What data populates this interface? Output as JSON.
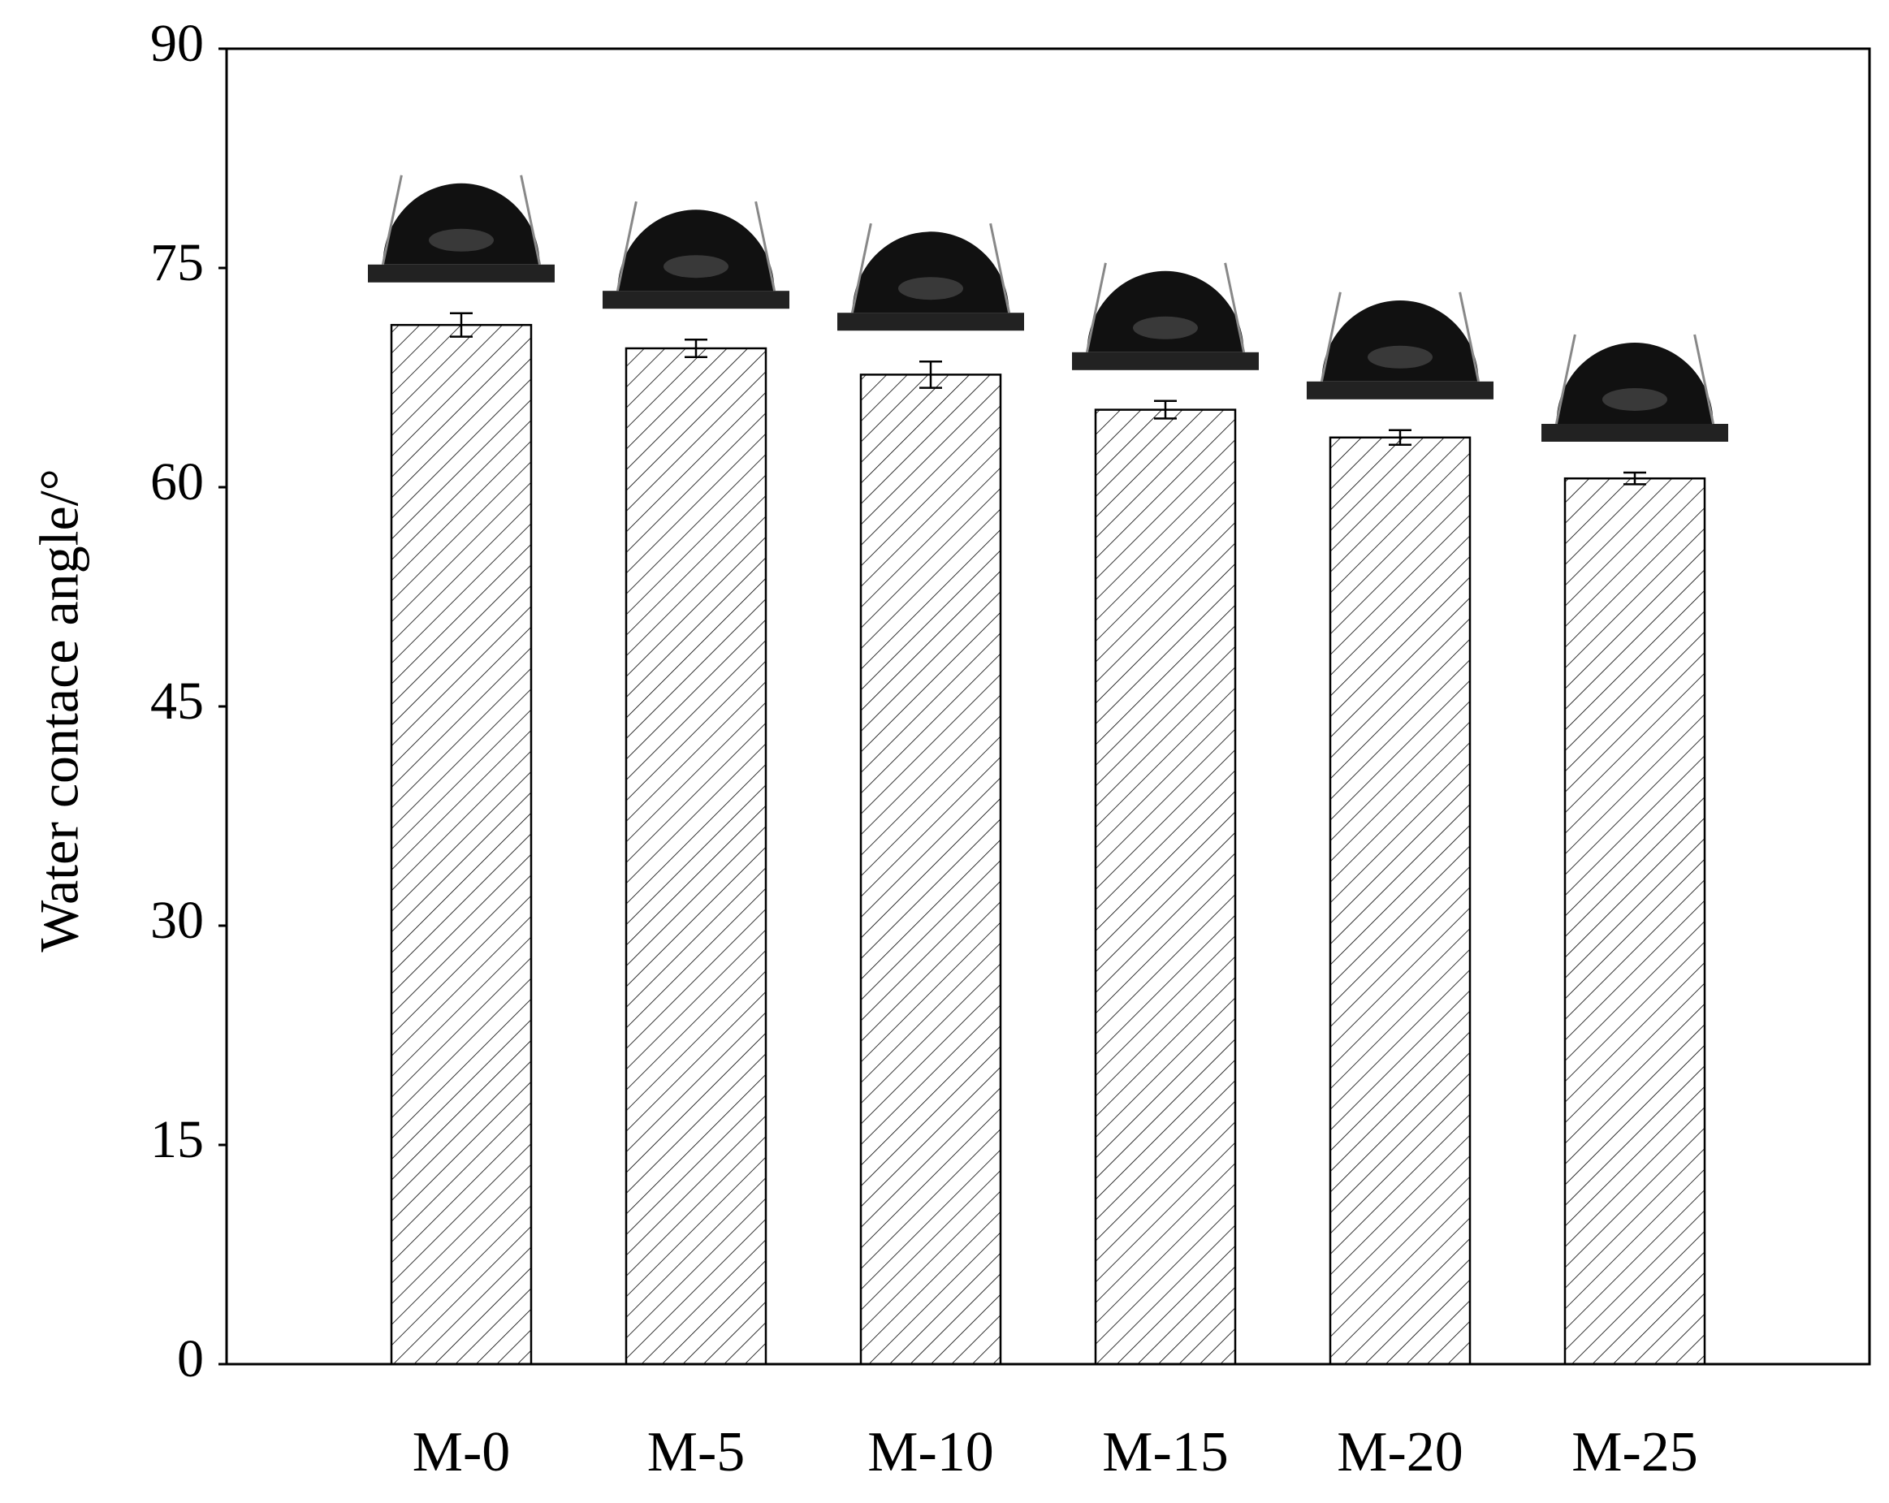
{
  "chart_data": {
    "type": "bar",
    "y_label": "Water contace angle/°",
    "categories": [
      "M-0",
      "M-5",
      "M-10",
      "M-15",
      "M-20",
      "M-25"
    ],
    "values": [
      71.1,
      69.5,
      67.7,
      65.3,
      63.4,
      60.6
    ],
    "errors": [
      0.8,
      0.6,
      0.9,
      0.6,
      0.5,
      0.4
    ],
    "color": "#ffffff",
    "ylim": [
      0,
      90
    ],
    "yticks": [
      0,
      15,
      30,
      45,
      60,
      75,
      90
    ],
    "grid": false
  }
}
